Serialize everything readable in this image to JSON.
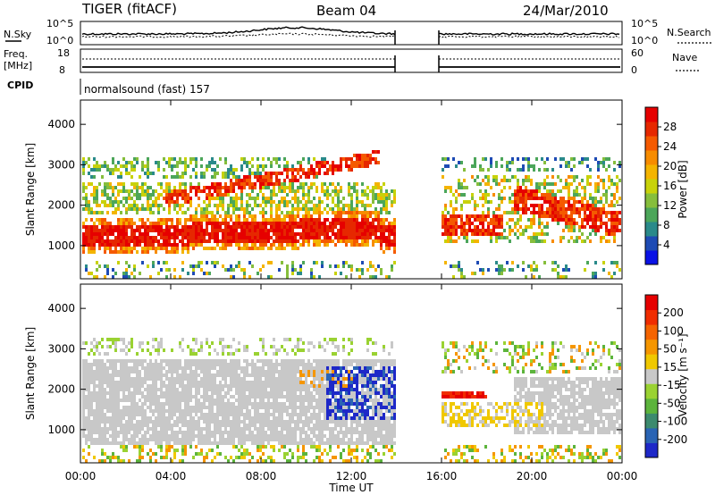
{
  "header": {
    "radar": "TIGER (fitACF)",
    "beam": "Beam 04",
    "date": "24/Mar/2010"
  },
  "noise_panel": {
    "left_label": "N.Sky",
    "right_label": "N.Search",
    "left_ticks": [
      "10^5",
      "10^0"
    ],
    "right_ticks": [
      "10^5",
      "10^0"
    ]
  },
  "freq_panel": {
    "left_label_1": "Freq.",
    "left_label_2": "[MHz]",
    "right_label": "Nave",
    "left_ticks": [
      "18",
      "8"
    ],
    "right_ticks": [
      "60",
      "0"
    ]
  },
  "cpid": {
    "label": "CPID",
    "value": "normalsound (fast) 157"
  },
  "chart_data": [
    {
      "type": "heatmap",
      "quantity": "power",
      "ylabel": "Slant Range [km]",
      "ylim": [
        180,
        4600
      ],
      "yticks": [
        "1000",
        "2000",
        "3000",
        "4000"
      ],
      "ytick_values": [
        1000,
        2000,
        3000,
        4000
      ],
      "xlim_hours": [
        0,
        24
      ],
      "data_gap_hours": [
        14,
        16
      ],
      "colorbar": {
        "label": "Power [dB]",
        "ticks": [
          "4",
          "8",
          "12",
          "16",
          "20",
          "24",
          "28"
        ],
        "colors": [
          "#0a12e6",
          "#1e4bb4",
          "#2a8a8a",
          "#4ca65a",
          "#86be3c",
          "#c8d20a",
          "#f4b400",
          "#f78c00",
          "#f55a00",
          "#e62800",
          "#e60000"
        ]
      }
    },
    {
      "type": "heatmap",
      "quantity": "velocity",
      "ylabel": "Slant Range [km]",
      "ylim": [
        180,
        4600
      ],
      "yticks": [
        "1000",
        "2000",
        "3000",
        "4000"
      ],
      "ytick_values": [
        1000,
        2000,
        3000,
        4000
      ],
      "xlim_hours": [
        0,
        24
      ],
      "data_gap_hours": [
        14,
        16
      ],
      "colorbar": {
        "label": "Velocity [m s⁻¹]",
        "ticks": [
          "200",
          "100",
          "50",
          "15",
          "-15",
          "-50",
          "-100",
          "-200"
        ],
        "colors": [
          "#1e28c8",
          "#2a64b4",
          "#3c8a6e",
          "#5cb43c",
          "#9ad232",
          "#c8c8c8",
          "#f0c800",
          "#f59600",
          "#f56400",
          "#f02d00",
          "#e60000"
        ]
      }
    }
  ],
  "time_axis": {
    "label": "Time UT",
    "ticks": [
      "00:00",
      "04:00",
      "08:00",
      "12:00",
      "16:00",
      "20:00",
      "00:00"
    ]
  }
}
